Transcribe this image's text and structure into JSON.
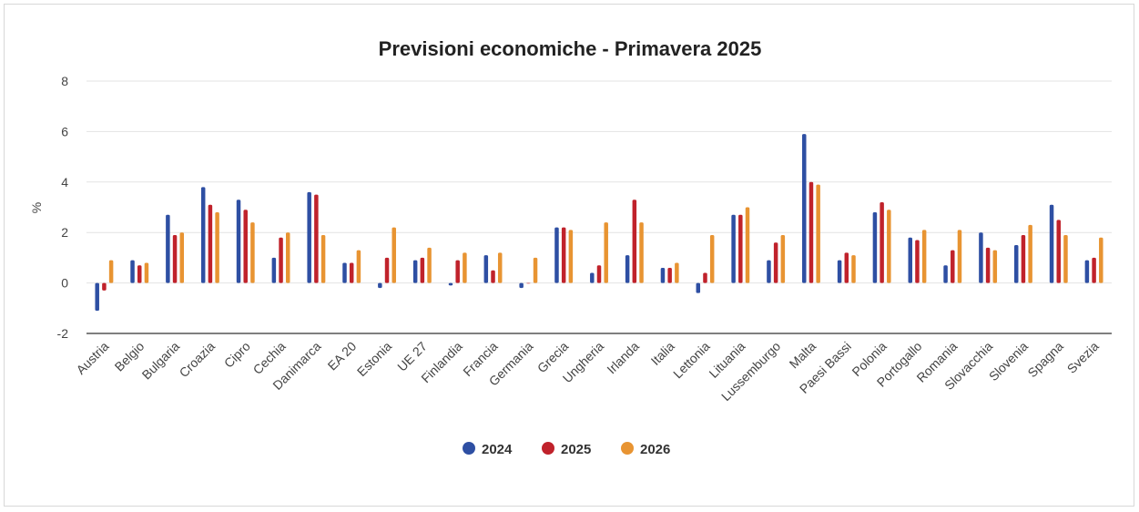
{
  "chart_data": {
    "type": "bar",
    "title": "Previsioni economiche - Primavera 2025",
    "xlabel": "",
    "ylabel": "%",
    "ylim": [
      -2,
      8
    ],
    "yticks": [
      -2,
      0,
      2,
      4,
      6,
      8
    ],
    "grid": true,
    "legend_position": "bottom",
    "categories": [
      "Austria",
      "Belgio",
      "Bulgaria",
      "Croazia",
      "Cipro",
      "Cechia",
      "Danimarca",
      "EA 20",
      "Estonia",
      "UE 27",
      "Finlandia",
      "Francia",
      "Germania",
      "Grecia",
      "Ungheria",
      "Irlanda",
      "Italia",
      "Lettonia",
      "Lituania",
      "Lussemburgo",
      "Malta",
      "Paesi Bassi",
      "Polonia",
      "Portogallo",
      "Romania",
      "Slovacchia",
      "Slovenia",
      "Spagna",
      "Svezia"
    ],
    "series": [
      {
        "name": "2024",
        "color": "#2e4fa3",
        "values": [
          -1.1,
          0.9,
          2.7,
          3.8,
          3.3,
          1.0,
          3.6,
          0.8,
          -0.2,
          0.9,
          -0.1,
          1.1,
          -0.2,
          2.2,
          0.4,
          1.1,
          0.6,
          -0.4,
          2.7,
          0.9,
          5.9,
          0.9,
          2.8,
          1.8,
          0.7,
          2.0,
          1.5,
          3.1,
          0.9
        ]
      },
      {
        "name": "2025",
        "color": "#c0222b",
        "values": [
          -0.3,
          0.7,
          1.9,
          3.1,
          2.9,
          1.8,
          3.5,
          0.8,
          1.0,
          1.0,
          0.9,
          0.5,
          0.0,
          2.2,
          0.7,
          3.3,
          0.6,
          0.4,
          2.7,
          1.6,
          4.0,
          1.2,
          3.2,
          1.7,
          1.3,
          1.4,
          1.9,
          2.5,
          1.0
        ]
      },
      {
        "name": "2026",
        "color": "#e89432",
        "values": [
          0.9,
          0.8,
          2.0,
          2.8,
          2.4,
          2.0,
          1.9,
          1.3,
          2.2,
          1.4,
          1.2,
          1.2,
          1.0,
          2.1,
          2.4,
          2.4,
          0.8,
          1.9,
          3.0,
          1.9,
          3.9,
          1.1,
          2.9,
          2.1,
          2.1,
          1.3,
          2.3,
          1.9,
          1.8
        ]
      }
    ]
  }
}
